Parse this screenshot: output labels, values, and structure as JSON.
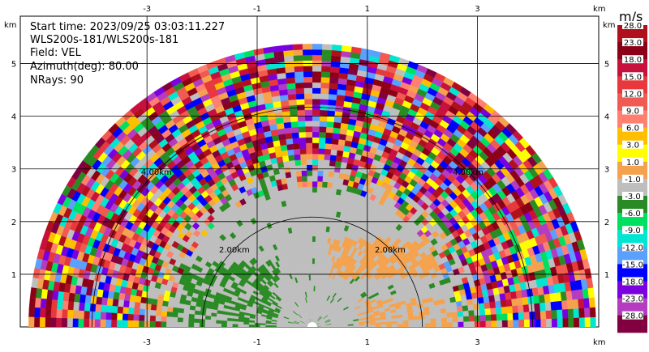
{
  "header": {
    "start_time": "Start time: 2023/09/25 03:03:11.227",
    "instrument": "WLS200s-181/WLS200s-181",
    "field": "Field: VEL",
    "azimuth": "Azimuth(deg): 80.00",
    "nrays": "NRays: 90"
  },
  "colors": {
    "gray": "#bebebe",
    "orange": "#f4a24e",
    "green": "#2a8b24",
    "ring": "#000000"
  },
  "chart_data": {
    "type": "heatmap",
    "plot": "RHI velocity scan (half-disc)",
    "x_unit": "km",
    "y_unit": "km",
    "x_ticks": [
      "-3",
      "-1",
      "1",
      "3"
    ],
    "x_tick_values": [
      -3,
      -1,
      1,
      3
    ],
    "y_ticks": [
      "1",
      "2",
      "3",
      "4",
      "5"
    ],
    "y_tick_values": [
      1,
      2,
      3,
      4,
      5
    ],
    "xlim": [
      -5.3,
      5.2
    ],
    "ylim": [
      0,
      5.9
    ],
    "max_range_km": 5.1,
    "range_rings": [
      {
        "label": "2.00km",
        "radius": 2.0
      },
      {
        "label": "4.00km",
        "radius": 4.0
      }
    ],
    "colorbar": {
      "unit": "m/s",
      "levels": [
        "28.0",
        "23.0",
        "18.0",
        "15.0",
        "12.0",
        "9.0",
        "6.0",
        "3.0",
        "1.0",
        "-1.0",
        "-3.0",
        "-6.0",
        "-9.0",
        "-12.0",
        "-15.0",
        "-18.0",
        "-23.0",
        "-28.0"
      ],
      "colors": [
        "#b0101c",
        "#8b0016",
        "#c8103c",
        "#e8383c",
        "#f05a50",
        "#ff7f70",
        "#ffbf00",
        "#ffff00",
        "#f4a24e",
        "#bebebe",
        "#2a8b24",
        "#00e060",
        "#00e6d0",
        "#5aa0ff",
        "#0000ff",
        "#7a00e0",
        "#b43cc0",
        "#800040"
      ]
    }
  }
}
